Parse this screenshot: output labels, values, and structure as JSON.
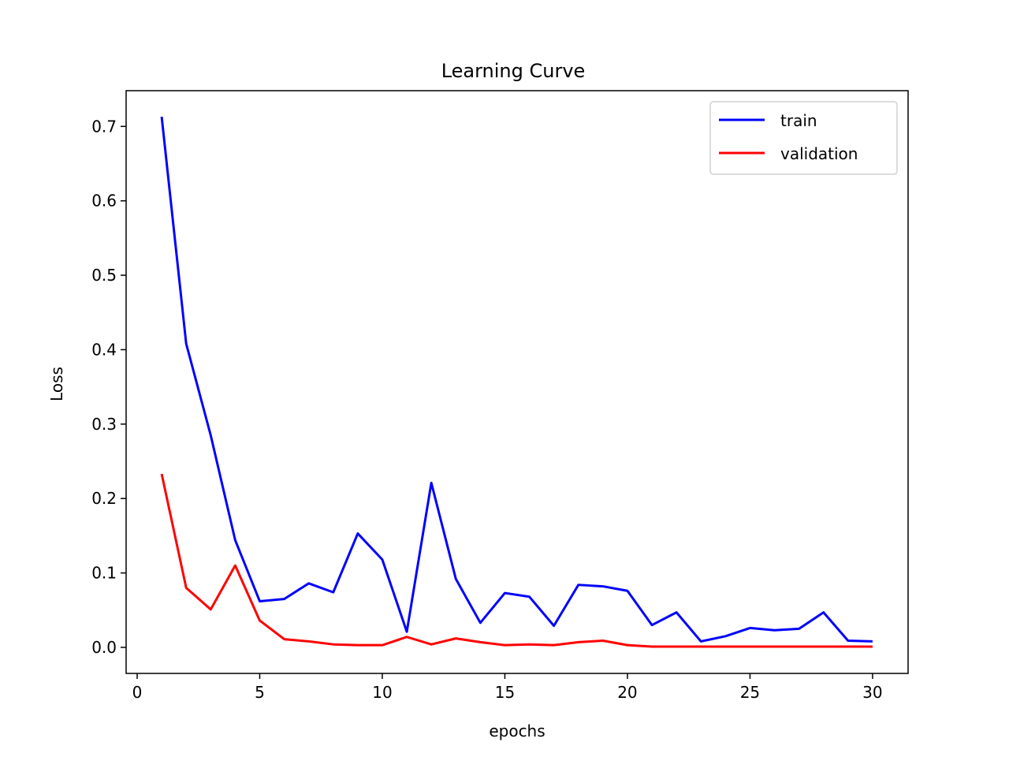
{
  "chart_data": {
    "type": "line",
    "title": "Learning Curve",
    "xlabel": "epochs",
    "ylabel": "Loss",
    "xlim": [
      -0.45,
      31.45
    ],
    "ylim": [
      -0.035,
      0.748
    ],
    "xticks": [
      0,
      5,
      10,
      15,
      20,
      25,
      30
    ],
    "yticks": [
      0.0,
      0.1,
      0.2,
      0.3,
      0.4,
      0.5,
      0.6,
      0.7
    ],
    "ytick_labels": [
      "0.0",
      "0.1",
      "0.2",
      "0.3",
      "0.4",
      "0.5",
      "0.6",
      "0.7"
    ],
    "grid": false,
    "legend_position": "top-right",
    "x": [
      1,
      2,
      3,
      4,
      5,
      6,
      7,
      8,
      9,
      10,
      11,
      12,
      13,
      14,
      15,
      16,
      17,
      18,
      19,
      20,
      21,
      22,
      23,
      24,
      25,
      26,
      27,
      28,
      29,
      30
    ],
    "series": [
      {
        "name": "train",
        "color": "#0000ff",
        "values": [
          0.713,
          0.408,
          0.285,
          0.144,
          0.062,
          0.065,
          0.086,
          0.074,
          0.153,
          0.118,
          0.021,
          0.221,
          0.092,
          0.033,
          0.073,
          0.068,
          0.029,
          0.084,
          0.082,
          0.076,
          0.03,
          0.047,
          0.008,
          0.015,
          0.026,
          0.023,
          0.025,
          0.047,
          0.009,
          0.008
        ]
      },
      {
        "name": "validation",
        "color": "#ff0000",
        "values": [
          0.233,
          0.08,
          0.051,
          0.11,
          0.036,
          0.011,
          0.008,
          0.004,
          0.003,
          0.003,
          0.014,
          0.004,
          0.012,
          0.007,
          0.003,
          0.004,
          0.003,
          0.007,
          0.009,
          0.003,
          0.001,
          0.001,
          0.001,
          0.001,
          0.001,
          0.001,
          0.001,
          0.001,
          0.001,
          0.001
        ]
      }
    ]
  }
}
